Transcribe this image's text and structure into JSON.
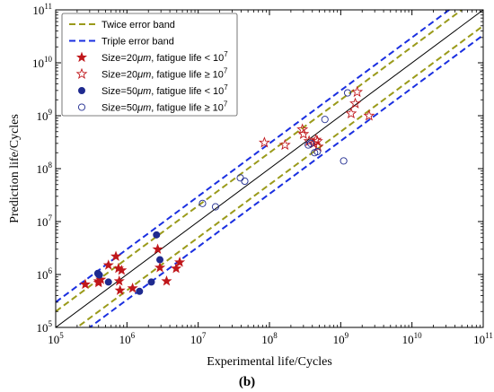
{
  "chart_data": {
    "type": "scatter",
    "xlabel": "Experimental life/Cycles",
    "ylabel": "Prediction life/Cycles",
    "panel_label": "(b)",
    "xscale": "log",
    "yscale": "log",
    "xlim": [
      100000,
      100000000000
    ],
    "ylim": [
      100000,
      100000000000
    ],
    "tick_base": "10",
    "tick_exponents": [
      "5",
      "6",
      "7",
      "8",
      "9",
      "10",
      "11"
    ],
    "grid": false,
    "legend_placement": "top-left",
    "reference_lines": [
      {
        "name": "",
        "factor": 1,
        "color": "#000000",
        "style": "solid"
      },
      {
        "name": "Twice error band",
        "factor": 2,
        "color": "#9a9a1a",
        "style": "dashed"
      },
      {
        "name": "Triple error band",
        "factor": 3,
        "color": "#1a2fe0",
        "style": "dashed"
      }
    ],
    "legend_text": [
      {
        "main": "Size=20",
        "unit": "μm",
        "rest": ", fatigue life < 10",
        "exp": "7"
      },
      {
        "main": "Size=20",
        "unit": "μm",
        "rest": ", fatigue life ≥ 10",
        "exp": "7"
      },
      {
        "main": "Size=50",
        "unit": "μm",
        "rest": ", fatigue life < 10",
        "exp": "7"
      },
      {
        "main": "Size=50",
        "unit": "μm",
        "rest": ", fatigue life ≥ 10",
        "exp": "7"
      }
    ],
    "series": [
      {
        "marker": "star-filled",
        "color": "#c0171b",
        "points": [
          [
            260000,
            650000
          ],
          [
            400000,
            700000
          ],
          [
            400000,
            750000
          ],
          [
            430000,
            800000
          ],
          [
            550000,
            1500000
          ],
          [
            700000,
            2200000
          ],
          [
            760000,
            1300000
          ],
          [
            780000,
            750000
          ],
          [
            800000,
            500000
          ],
          [
            840000,
            1200000
          ],
          [
            1200000,
            550000
          ],
          [
            2700000,
            3000000
          ],
          [
            2900000,
            1350000
          ],
          [
            3600000,
            750000
          ],
          [
            4900000,
            1300000
          ],
          [
            5500000,
            1700000
          ]
        ]
      },
      {
        "marker": "star-open",
        "color": "#c0171b",
        "points": [
          [
            85000000,
            310000000
          ],
          [
            165000000,
            280000000
          ],
          [
            290000000,
            550000000
          ],
          [
            300000000,
            450000000
          ],
          [
            360000000,
            330000000
          ],
          [
            420000000,
            300000000
          ],
          [
            450000000,
            350000000
          ],
          [
            470000000,
            330000000
          ],
          [
            480000000,
            260000000
          ],
          [
            1400000000,
            1100000000
          ],
          [
            1600000000,
            1700000000
          ],
          [
            1700000000,
            2800000000
          ],
          [
            2500000000,
            1000000000
          ]
        ]
      },
      {
        "marker": "circle-filled",
        "color": "#1f2a8f",
        "points": [
          [
            390000,
            1050000
          ],
          [
            400000,
            1000000
          ],
          [
            410000,
            980000
          ],
          [
            550000,
            720000
          ],
          [
            1500000,
            480000
          ],
          [
            2200000,
            720000
          ],
          [
            2600000,
            5600000
          ],
          [
            2900000,
            1900000
          ]
        ]
      },
      {
        "marker": "circle-open",
        "color": "#1f2a8f",
        "points": [
          [
            11500000,
            22000000
          ],
          [
            17500000,
            19000000
          ],
          [
            39000000,
            67000000
          ],
          [
            45000000,
            58000000
          ],
          [
            350000000,
            280000000
          ],
          [
            380000000,
            300000000
          ],
          [
            430000000,
            200000000
          ],
          [
            470000000,
            210000000
          ],
          [
            600000000,
            850000000
          ],
          [
            1100000000,
            140000000
          ],
          [
            1250000000,
            2700000000
          ]
        ]
      }
    ]
  }
}
